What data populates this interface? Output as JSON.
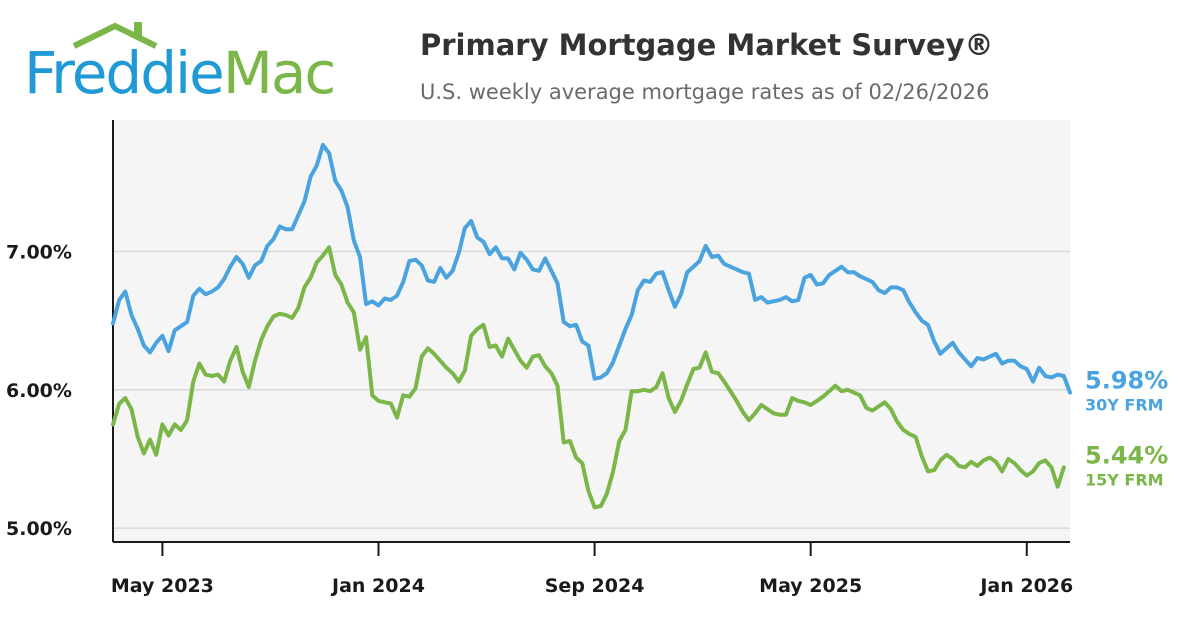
{
  "brand": {
    "name_part1": "Freddie",
    "name_part2": "Mac",
    "blue": "#1f9ad6",
    "green": "#7ab648"
  },
  "header": {
    "title": "Primary Mortgage Market Survey®",
    "subtitle": "U.S. weekly average mortgage rates as of 02/26/2026"
  },
  "chart_data": {
    "type": "line",
    "title": "Primary Mortgage Market Survey®",
    "subtitle": "U.S. weekly average mortgage rates as of 02/26/2026",
    "xlabel": "",
    "ylabel": "",
    "ylim": [
      4.9,
      7.95
    ],
    "grid": true,
    "y_ticks": [
      {
        "value": 5.0,
        "label": "5.00%"
      },
      {
        "value": 6.0,
        "label": "6.00%"
      },
      {
        "value": 7.0,
        "label": "7.00%"
      }
    ],
    "x_ticks": [
      {
        "week": 8,
        "label": "May 2023"
      },
      {
        "week": 43,
        "label": "Jan 2024"
      },
      {
        "week": 78,
        "label": "Sep 2024"
      },
      {
        "week": 113,
        "label": "May 2025"
      },
      {
        "week": 148,
        "label": "Jan 2026"
      }
    ],
    "x_range": [
      0,
      155
    ],
    "series": [
      {
        "name": "30Y FRM",
        "color": "#4aa3df",
        "end_label": "5.98%",
        "values": [
          6.48,
          6.65,
          6.71,
          6.54,
          6.44,
          6.32,
          6.27,
          6.34,
          6.39,
          6.28,
          6.43,
          6.46,
          6.49,
          6.68,
          6.73,
          6.69,
          6.71,
          6.74,
          6.8,
          6.89,
          6.96,
          6.91,
          6.81,
          6.9,
          6.93,
          7.04,
          7.09,
          7.18,
          7.16,
          7.16,
          7.26,
          7.36,
          7.54,
          7.62,
          7.77,
          7.71,
          7.51,
          7.44,
          7.32,
          7.08,
          6.96,
          6.62,
          6.64,
          6.61,
          6.66,
          6.65,
          6.68,
          6.78,
          6.93,
          6.94,
          6.9,
          6.79,
          6.78,
          6.88,
          6.81,
          6.86,
          6.99,
          7.17,
          7.22,
          7.1,
          7.07,
          6.98,
          7.03,
          6.95,
          6.95,
          6.87,
          6.99,
          6.94,
          6.87,
          6.86,
          6.95,
          6.86,
          6.77,
          6.49,
          6.46,
          6.47,
          6.35,
          6.32,
          6.08,
          6.09,
          6.12,
          6.2,
          6.32,
          6.44,
          6.54,
          6.72,
          6.79,
          6.78,
          6.84,
          6.85,
          6.72,
          6.6,
          6.69,
          6.85,
          6.89,
          6.93,
          7.04,
          6.96,
          6.97,
          6.91,
          6.89,
          6.87,
          6.85,
          6.84,
          6.65,
          6.67,
          6.63,
          6.64,
          6.65,
          6.67,
          6.64,
          6.65,
          6.81,
          6.83,
          6.76,
          6.77,
          6.83,
          6.86,
          6.89,
          6.85,
          6.85,
          6.82,
          6.8,
          6.78,
          6.72,
          6.7,
          6.74,
          6.74,
          6.72,
          6.63,
          6.56,
          6.5,
          6.47,
          6.35,
          6.26,
          6.3,
          6.34,
          6.27,
          6.22,
          6.17,
          6.23,
          6.22,
          6.24,
          6.26,
          6.19,
          6.21,
          6.21,
          6.17,
          6.15,
          6.06,
          6.16,
          6.1,
          6.09,
          6.11,
          6.1,
          5.98
        ]
      },
      {
        "name": "15Y FRM",
        "color": "#7ab648",
        "end_label": "5.44%",
        "values": [
          5.75,
          5.9,
          5.94,
          5.86,
          5.66,
          5.54,
          5.64,
          5.53,
          5.75,
          5.67,
          5.75,
          5.71,
          5.78,
          6.06,
          6.19,
          6.11,
          6.1,
          6.11,
          6.06,
          6.21,
          6.31,
          6.13,
          6.02,
          6.21,
          6.36,
          6.46,
          6.53,
          6.55,
          6.54,
          6.52,
          6.59,
          6.74,
          6.81,
          6.92,
          6.97,
          7.03,
          6.83,
          6.76,
          6.63,
          6.56,
          6.29,
          6.38,
          5.96,
          5.92,
          5.91,
          5.9,
          5.8,
          5.96,
          5.95,
          6.01,
          6.24,
          6.3,
          6.26,
          6.21,
          6.16,
          6.12,
          6.06,
          6.14,
          6.39,
          6.44,
          6.47,
          6.31,
          6.32,
          6.24,
          6.37,
          6.29,
          6.21,
          6.16,
          6.24,
          6.25,
          6.17,
          6.12,
          6.03,
          5.62,
          5.63,
          5.51,
          5.47,
          5.27,
          5.15,
          5.16,
          5.25,
          5.41,
          5.63,
          5.71,
          5.99,
          5.99,
          6.0,
          5.99,
          6.02,
          6.12,
          5.94,
          5.84,
          5.92,
          6.04,
          6.15,
          6.16,
          6.27,
          6.13,
          6.12,
          6.06,
          5.99,
          5.92,
          5.84,
          5.78,
          5.83,
          5.89,
          5.86,
          5.83,
          5.82,
          5.82,
          5.94,
          5.92,
          5.91,
          5.89,
          5.92,
          5.95,
          5.99,
          6.03,
          5.99,
          6.0,
          5.98,
          5.96,
          5.87,
          5.85,
          5.88,
          5.91,
          5.86,
          5.77,
          5.71,
          5.68,
          5.66,
          5.52,
          5.41,
          5.42,
          5.49,
          5.53,
          5.5,
          5.45,
          5.44,
          5.48,
          5.45,
          5.49,
          5.51,
          5.48,
          5.41,
          5.5,
          5.47,
          5.42,
          5.38,
          5.41,
          5.47,
          5.49,
          5.44,
          5.3,
          5.44
        ]
      }
    ]
  }
}
